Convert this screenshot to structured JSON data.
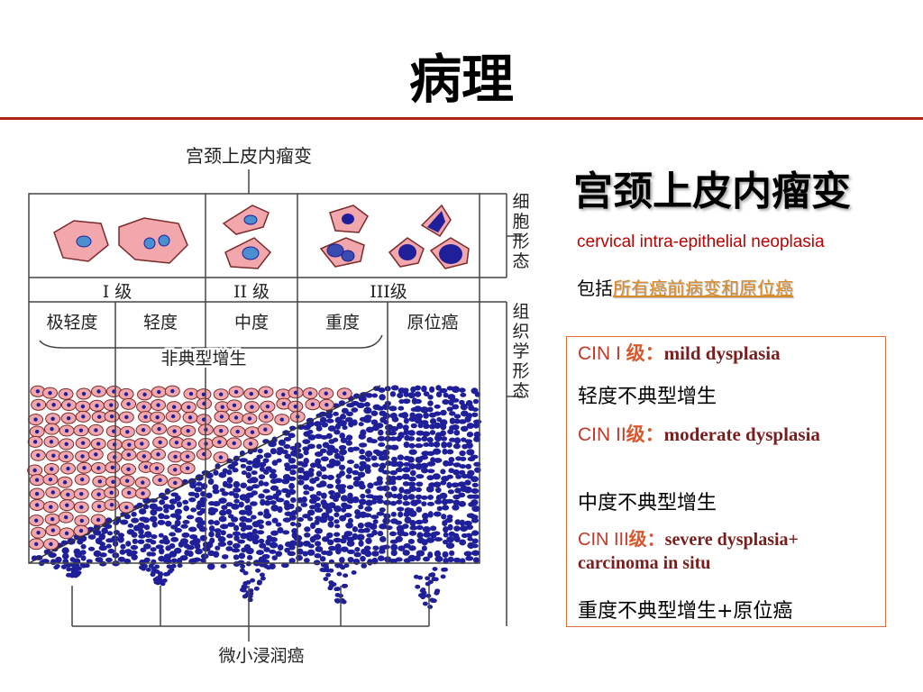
{
  "slide": {
    "title": "病理",
    "rule_color": "#b32418"
  },
  "diagram": {
    "top_label": "宫颈上皮内瘤变",
    "side_label_1": "细胞形态",
    "side_label_2": "组织学形态",
    "grades": [
      "I 级",
      "II 级",
      "III级"
    ],
    "degrees": [
      "极轻度",
      "轻度",
      "中度",
      "重度",
      "原位癌"
    ],
    "atypia_label": "非典型增生",
    "bottom_label": "微小浸润癌",
    "colors": {
      "cell": "#f2a7ad",
      "nucleus": "#1f1f9a",
      "small_nucleus": "#4a8fd0",
      "cell_border": "#7a2a2a"
    }
  },
  "right_panel": {
    "heading": "宫颈上皮内瘤变",
    "english": "cervical intra-epithelial neoplasia",
    "includes_prefix": "包括",
    "includes_highlight": "所有癌前病变和原位癌",
    "cin": [
      {
        "code": "CIN I ",
        "level": "级：",
        "english": "mild dysplasia",
        "chinese": "轻度不典型增生"
      },
      {
        "code": "CIN II",
        "level": "级：",
        "english": "moderate dysplasia",
        "chinese": "中度不典型增生"
      },
      {
        "code": "CIN III",
        "level": "级：",
        "english": "severe dysplasia+ carcinoma in situ",
        "chinese": "重度不典型增生+原位癌"
      }
    ]
  }
}
